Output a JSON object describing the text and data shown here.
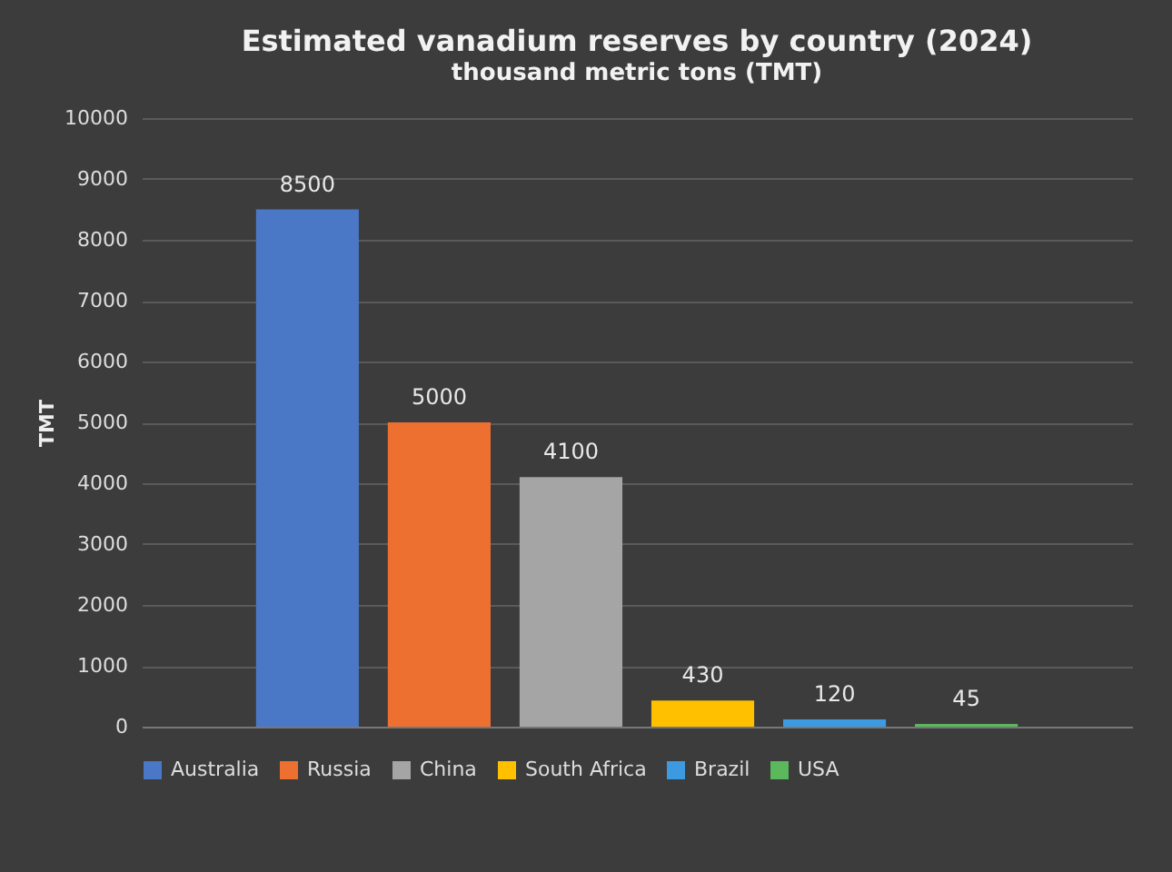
{
  "chart_data": {
    "type": "bar",
    "title": "Estimated vanadium reserves by country (2024)",
    "subtitle": "thousand metric tons (TMT)",
    "ylabel": "TMT",
    "categories": [
      null
    ],
    "series": [
      {
        "name": "Australia",
        "color": "#4a78c6",
        "values": [
          8500
        ]
      },
      {
        "name": "Russia",
        "color": "#ed7031",
        "values": [
          5000
        ]
      },
      {
        "name": "China",
        "color": "#a5a5a5",
        "values": [
          4100
        ]
      },
      {
        "name": "South Africa",
        "color": "#ffc000",
        "values": [
          430
        ]
      },
      {
        "name": "Brazil",
        "color": "#3d9ae0",
        "values": [
          120
        ]
      },
      {
        "name": "USA",
        "color": "#5cb85c",
        "values": [
          45
        ]
      }
    ],
    "ylim": [
      0,
      10000
    ],
    "yticks": [
      0,
      1000,
      2000,
      3000,
      4000,
      5000,
      6000,
      7000,
      8000,
      9000,
      10000
    ],
    "grid": "y",
    "legend": "bottom",
    "tick_labels": "y",
    "data_labels": true
  }
}
